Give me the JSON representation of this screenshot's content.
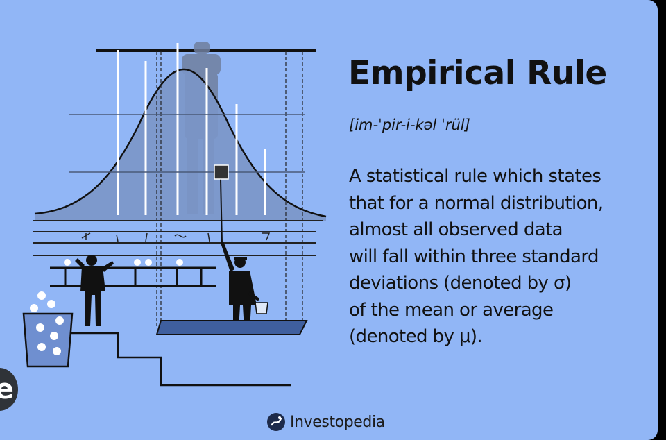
{
  "title": "Empirical Rule",
  "pronunciation": "[im-ˈpir-i-kəl ˈrül]",
  "definition_lines": [
    "A statistical rule which states",
    "that for a normal distribution,",
    "almost all observed data",
    "will fall within three standard",
    "deviations (denoted by σ)",
    "of the mean or average",
    "(denoted by μ)."
  ],
  "brand": {
    "name": "Investopedia",
    "logo_icon": "investopedia-logo-icon"
  },
  "side_badge": {
    "letter": "e",
    "icon": "floating-action-icon"
  },
  "colors": {
    "background": "#91b6f6",
    "curve_fill": "#7b96c8",
    "ink": "#111111",
    "highlight": "#ffffff",
    "badge": "#2f3338"
  }
}
